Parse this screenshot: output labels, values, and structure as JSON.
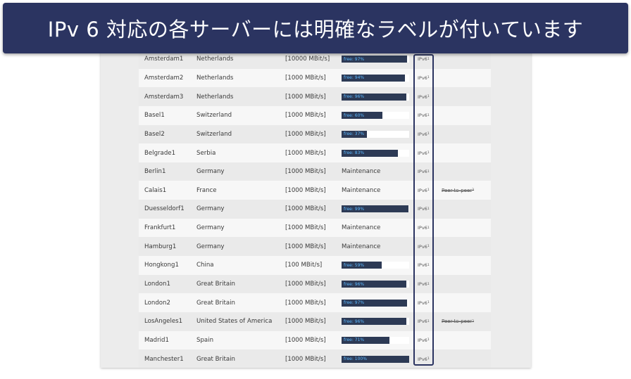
{
  "banner": {
    "text": "IPv 6 対応の各サーバーには明確なラベルが付いています"
  },
  "colors": {
    "banner_bg": "#2b3461",
    "bar_fill": "#2d3a55",
    "bar_text": "#5bb8ff",
    "highlight": "#2b3461"
  },
  "servers": [
    {
      "name": "Amsterdam1",
      "country": "Netherlands",
      "speed": "[10000 MBit/s]",
      "load_label": "free: 97%",
      "free": 97,
      "maintenance": false,
      "ipv6": "IPv6",
      "ipv6_note": "1",
      "p2p": "",
      "p2p_note": ""
    },
    {
      "name": "Amsterdam2",
      "country": "Netherlands",
      "speed": "[1000 MBit/s]",
      "load_label": "free: 94%",
      "free": 94,
      "maintenance": false,
      "ipv6": "IPv6",
      "ipv6_note": "1",
      "p2p": "",
      "p2p_note": ""
    },
    {
      "name": "Amsterdam3",
      "country": "Netherlands",
      "speed": "[1000 MBit/s]",
      "load_label": "free: 96%",
      "free": 96,
      "maintenance": false,
      "ipv6": "IPv6",
      "ipv6_note": "1",
      "p2p": "",
      "p2p_note": ""
    },
    {
      "name": "Basel1",
      "country": "Switzerland",
      "speed": "[1000 MBit/s]",
      "load_label": "free: 60%",
      "free": 60,
      "maintenance": false,
      "ipv6": "IPv6",
      "ipv6_note": "1",
      "p2p": "",
      "p2p_note": ""
    },
    {
      "name": "Basel2",
      "country": "Switzerland",
      "speed": "[1000 MBit/s]",
      "load_label": "free: 37%",
      "free": 37,
      "maintenance": false,
      "ipv6": "IPv6",
      "ipv6_note": "1",
      "p2p": "",
      "p2p_note": ""
    },
    {
      "name": "Belgrade1",
      "country": "Serbia",
      "speed": "[1000 MBit/s]",
      "load_label": "free: 83%",
      "free": 83,
      "maintenance": false,
      "ipv6": "IPv6",
      "ipv6_note": "1",
      "p2p": "",
      "p2p_note": ""
    },
    {
      "name": "Berlin1",
      "country": "Germany",
      "speed": "[1000 MBit/s]",
      "load_label": "Maintenance",
      "free": 0,
      "maintenance": true,
      "ipv6": "IPv6",
      "ipv6_note": "1",
      "p2p": "",
      "p2p_note": ""
    },
    {
      "name": "Calais1",
      "country": "France",
      "speed": "[1000 MBit/s]",
      "load_label": "Maintenance",
      "free": 0,
      "maintenance": true,
      "ipv6": "IPv6",
      "ipv6_note": "1",
      "p2p": "Peer-to-peer",
      "p2p_note": "3"
    },
    {
      "name": "Duesseldorf1",
      "country": "Germany",
      "speed": "[1000 MBit/s]",
      "load_label": "free: 99%",
      "free": 99,
      "maintenance": false,
      "ipv6": "IPv6",
      "ipv6_note": "1",
      "p2p": "",
      "p2p_note": ""
    },
    {
      "name": "Frankfurt1",
      "country": "Germany",
      "speed": "[1000 MBit/s]",
      "load_label": "Maintenance",
      "free": 0,
      "maintenance": true,
      "ipv6": "IPv6",
      "ipv6_note": "1",
      "p2p": "",
      "p2p_note": ""
    },
    {
      "name": "Hamburg1",
      "country": "Germany",
      "speed": "[1000 MBit/s]",
      "load_label": "Maintenance",
      "free": 0,
      "maintenance": true,
      "ipv6": "IPv6",
      "ipv6_note": "1",
      "p2p": "",
      "p2p_note": ""
    },
    {
      "name": "Hongkong1",
      "country": "China",
      "speed": "[100 MBit/s]",
      "load_label": "free: 59%",
      "free": 59,
      "maintenance": false,
      "ipv6": "IPv6",
      "ipv6_note": "1",
      "p2p": "",
      "p2p_note": ""
    },
    {
      "name": "London1",
      "country": "Great Britain",
      "speed": "[1000 MBit/s]",
      "load_label": "free: 96%",
      "free": 96,
      "maintenance": false,
      "ipv6": "IPv6",
      "ipv6_note": "1",
      "p2p": "",
      "p2p_note": ""
    },
    {
      "name": "London2",
      "country": "Great Britain",
      "speed": "[1000 MBit/s]",
      "load_label": "free: 97%",
      "free": 97,
      "maintenance": false,
      "ipv6": "IPv6",
      "ipv6_note": "1",
      "p2p": "",
      "p2p_note": ""
    },
    {
      "name": "LosAngeles1",
      "country": "United States of America",
      "speed": "[1000 MBit/s]",
      "load_label": "free: 96%",
      "free": 96,
      "maintenance": false,
      "ipv6": "IPv6",
      "ipv6_note": "1",
      "p2p": "Peer-to-peer",
      "p2p_note": "3"
    },
    {
      "name": "Madrid1",
      "country": "Spain",
      "speed": "[1000 MBit/s]",
      "load_label": "free: 71%",
      "free": 71,
      "maintenance": false,
      "ipv6": "IPv6",
      "ipv6_note": "1",
      "p2p": "",
      "p2p_note": ""
    },
    {
      "name": "Manchester1",
      "country": "Great Britain",
      "speed": "[1000 MBit/s]",
      "load_label": "free: 100%",
      "free": 100,
      "maintenance": false,
      "ipv6": "IPv6",
      "ipv6_note": "1",
      "p2p": "",
      "p2p_note": ""
    }
  ]
}
